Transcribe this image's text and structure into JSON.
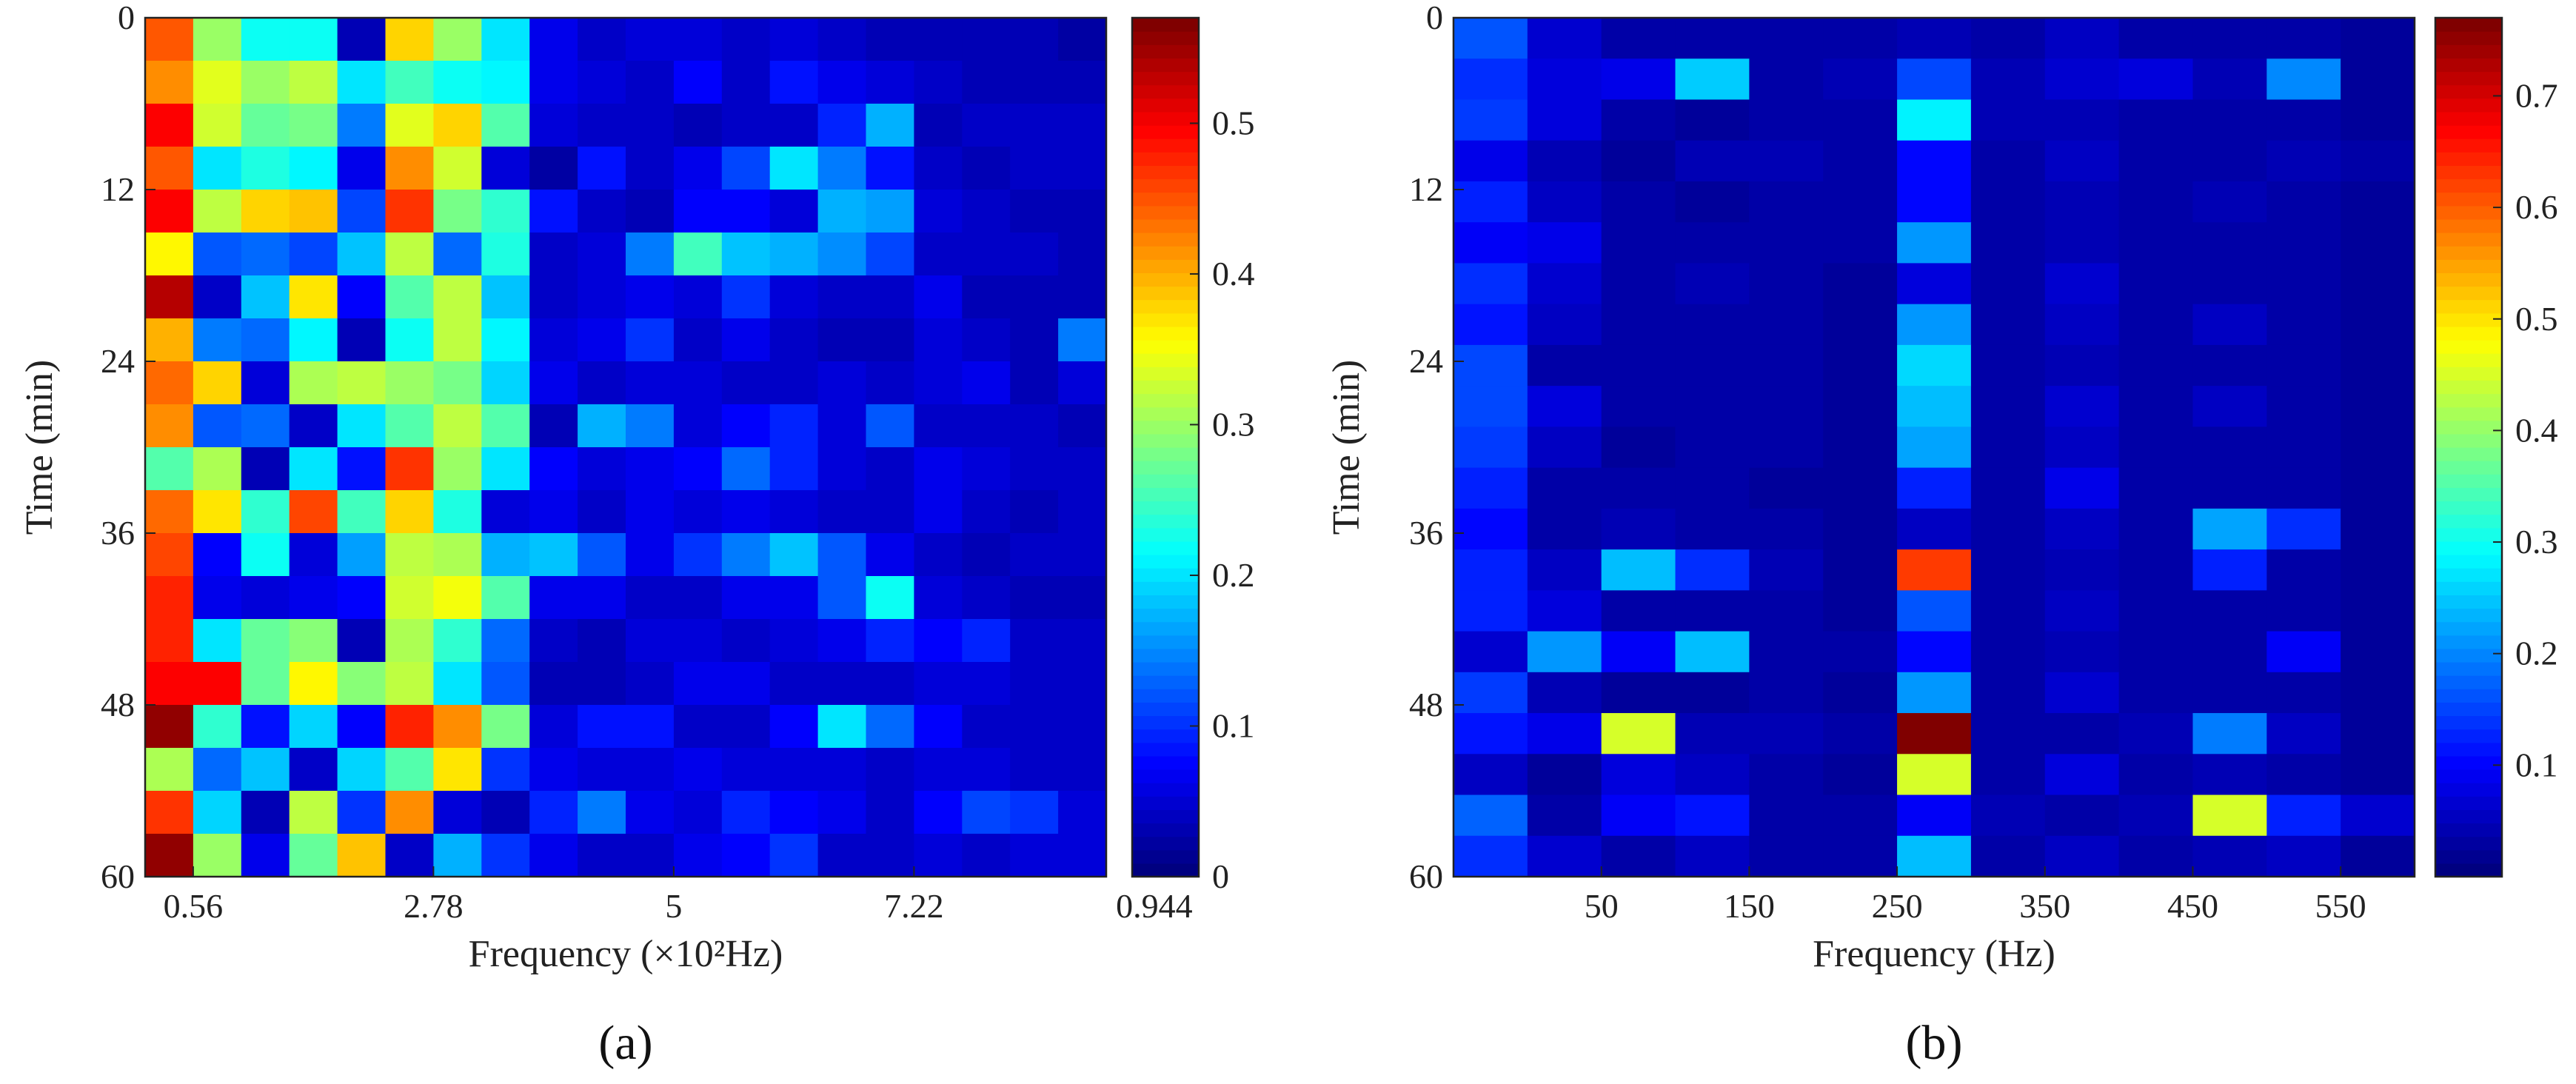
{
  "chart_data": [
    {
      "type": "heatmap",
      "panel_label": "(a)",
      "xlabel": "Frequency (×10²Hz)",
      "ylabel": "Time (min)",
      "xticklabels": [
        "0.56",
        "2.78",
        "5",
        "7.22",
        "0.944"
      ],
      "xtick_columns": [
        1,
        6,
        11,
        16,
        21
      ],
      "yticks": [
        0,
        12,
        24,
        36,
        48,
        60
      ],
      "ylim": [
        0,
        60
      ],
      "colorbar": {
        "min": 0,
        "max": 0.57,
        "ticks": [
          0,
          0.1,
          0.2,
          0.3,
          0.4,
          0.5
        ],
        "ticklabels": [
          "0",
          "0.1",
          "0.2",
          "0.3",
          "0.4",
          "0.5"
        ]
      },
      "values": [
        [
          0.45,
          0.3,
          0.22,
          0.22,
          0.03,
          0.38,
          0.3,
          0.2,
          0.06,
          0.04,
          0.05,
          0.05,
          0.04,
          0.05,
          0.04,
          0.03,
          0.03,
          0.03,
          0.03,
          0.02
        ],
        [
          0.42,
          0.34,
          0.3,
          0.32,
          0.2,
          0.25,
          0.22,
          0.21,
          0.06,
          0.05,
          0.04,
          0.07,
          0.04,
          0.08,
          0.06,
          0.05,
          0.04,
          0.03,
          0.03,
          0.03
        ],
        [
          0.5,
          0.33,
          0.27,
          0.28,
          0.14,
          0.34,
          0.38,
          0.26,
          0.05,
          0.04,
          0.04,
          0.03,
          0.04,
          0.04,
          0.09,
          0.17,
          0.03,
          0.04,
          0.04,
          0.04
        ],
        [
          0.45,
          0.2,
          0.23,
          0.21,
          0.06,
          0.42,
          0.33,
          0.05,
          0.02,
          0.08,
          0.04,
          0.06,
          0.11,
          0.2,
          0.14,
          0.08,
          0.04,
          0.03,
          0.04,
          0.04
        ],
        [
          0.5,
          0.32,
          0.38,
          0.39,
          0.11,
          0.47,
          0.28,
          0.24,
          0.08,
          0.04,
          0.03,
          0.07,
          0.07,
          0.05,
          0.17,
          0.16,
          0.05,
          0.04,
          0.03,
          0.03
        ],
        [
          0.36,
          0.12,
          0.13,
          0.11,
          0.18,
          0.32,
          0.13,
          0.23,
          0.04,
          0.05,
          0.14,
          0.25,
          0.18,
          0.17,
          0.15,
          0.11,
          0.04,
          0.04,
          0.04,
          0.03
        ],
        [
          0.54,
          0.04,
          0.18,
          0.37,
          0.07,
          0.26,
          0.32,
          0.18,
          0.04,
          0.05,
          0.06,
          0.05,
          0.1,
          0.05,
          0.04,
          0.04,
          0.06,
          0.03,
          0.03,
          0.03
        ],
        [
          0.4,
          0.14,
          0.13,
          0.21,
          0.03,
          0.22,
          0.32,
          0.21,
          0.05,
          0.06,
          0.1,
          0.04,
          0.06,
          0.04,
          0.03,
          0.03,
          0.05,
          0.04,
          0.03,
          0.14
        ],
        [
          0.44,
          0.38,
          0.05,
          0.31,
          0.32,
          0.3,
          0.28,
          0.19,
          0.06,
          0.04,
          0.05,
          0.05,
          0.04,
          0.04,
          0.05,
          0.04,
          0.05,
          0.06,
          0.03,
          0.05
        ],
        [
          0.42,
          0.12,
          0.13,
          0.04,
          0.2,
          0.26,
          0.32,
          0.26,
          0.03,
          0.17,
          0.14,
          0.05,
          0.07,
          0.09,
          0.05,
          0.12,
          0.04,
          0.04,
          0.04,
          0.03
        ],
        [
          0.26,
          0.31,
          0.03,
          0.2,
          0.08,
          0.47,
          0.3,
          0.2,
          0.07,
          0.05,
          0.06,
          0.07,
          0.13,
          0.09,
          0.05,
          0.04,
          0.06,
          0.05,
          0.04,
          0.04
        ],
        [
          0.44,
          0.37,
          0.24,
          0.46,
          0.25,
          0.38,
          0.23,
          0.05,
          0.06,
          0.04,
          0.06,
          0.05,
          0.06,
          0.05,
          0.04,
          0.04,
          0.06,
          0.04,
          0.03,
          0.04
        ],
        [
          0.46,
          0.07,
          0.22,
          0.05,
          0.16,
          0.32,
          0.31,
          0.17,
          0.18,
          0.12,
          0.06,
          0.1,
          0.14,
          0.18,
          0.12,
          0.06,
          0.04,
          0.03,
          0.04,
          0.04
        ],
        [
          0.48,
          0.06,
          0.05,
          0.06,
          0.07,
          0.33,
          0.35,
          0.26,
          0.06,
          0.06,
          0.04,
          0.04,
          0.06,
          0.06,
          0.12,
          0.22,
          0.05,
          0.04,
          0.03,
          0.03
        ],
        [
          0.48,
          0.2,
          0.27,
          0.29,
          0.03,
          0.31,
          0.24,
          0.13,
          0.04,
          0.03,
          0.05,
          0.05,
          0.04,
          0.05,
          0.06,
          0.09,
          0.07,
          0.09,
          0.04,
          0.04
        ],
        [
          0.5,
          0.5,
          0.27,
          0.36,
          0.29,
          0.32,
          0.2,
          0.12,
          0.03,
          0.03,
          0.04,
          0.06,
          0.06,
          0.04,
          0.04,
          0.04,
          0.05,
          0.05,
          0.04,
          0.04
        ],
        [
          0.56,
          0.24,
          0.08,
          0.19,
          0.07,
          0.48,
          0.42,
          0.28,
          0.05,
          0.08,
          0.08,
          0.04,
          0.04,
          0.07,
          0.2,
          0.13,
          0.07,
          0.04,
          0.04,
          0.04
        ],
        [
          0.31,
          0.13,
          0.18,
          0.04,
          0.19,
          0.26,
          0.37,
          0.1,
          0.06,
          0.05,
          0.05,
          0.06,
          0.05,
          0.05,
          0.05,
          0.04,
          0.05,
          0.05,
          0.04,
          0.04
        ],
        [
          0.47,
          0.19,
          0.03,
          0.32,
          0.1,
          0.42,
          0.05,
          0.03,
          0.09,
          0.14,
          0.06,
          0.05,
          0.09,
          0.07,
          0.06,
          0.04,
          0.07,
          0.11,
          0.1,
          0.05
        ],
        [
          0.56,
          0.3,
          0.06,
          0.27,
          0.39,
          0.04,
          0.17,
          0.1,
          0.06,
          0.04,
          0.04,
          0.06,
          0.07,
          0.1,
          0.04,
          0.04,
          0.05,
          0.04,
          0.05,
          0.05
        ]
      ]
    },
    {
      "type": "heatmap",
      "panel_label": "(b)",
      "xlabel": "Frequency (Hz)",
      "ylabel": "Time (min)",
      "xticklabels": [
        "50",
        "150",
        "250",
        "350",
        "450",
        "550"
      ],
      "xtick_columns": [
        2,
        4,
        6,
        8,
        10,
        12
      ],
      "yticks": [
        0,
        12,
        24,
        36,
        48,
        60
      ],
      "ylim": [
        0,
        60
      ],
      "colorbar": {
        "min": 0,
        "max": 0.77,
        "ticks": [
          0.1,
          0.2,
          0.3,
          0.4,
          0.5,
          0.6,
          0.7
        ],
        "ticklabels": [
          "0.1",
          "0.2",
          "0.3",
          "0.4",
          "0.5",
          "0.6",
          "0.7"
        ]
      },
      "values": [
        [
          0.16,
          0.06,
          0.03,
          0.03,
          0.03,
          0.03,
          0.04,
          0.03,
          0.05,
          0.03,
          0.03,
          0.03,
          0.02
        ],
        [
          0.13,
          0.07,
          0.08,
          0.25,
          0.03,
          0.04,
          0.15,
          0.04,
          0.06,
          0.07,
          0.04,
          0.2,
          0.02
        ],
        [
          0.14,
          0.07,
          0.03,
          0.02,
          0.03,
          0.03,
          0.28,
          0.04,
          0.04,
          0.03,
          0.03,
          0.03,
          0.02
        ],
        [
          0.08,
          0.04,
          0.02,
          0.04,
          0.04,
          0.03,
          0.1,
          0.03,
          0.05,
          0.03,
          0.03,
          0.04,
          0.03
        ],
        [
          0.12,
          0.05,
          0.03,
          0.02,
          0.03,
          0.03,
          0.1,
          0.03,
          0.04,
          0.03,
          0.04,
          0.03,
          0.02
        ],
        [
          0.09,
          0.08,
          0.03,
          0.03,
          0.03,
          0.03,
          0.21,
          0.03,
          0.04,
          0.03,
          0.03,
          0.03,
          0.02
        ],
        [
          0.13,
          0.06,
          0.03,
          0.04,
          0.03,
          0.02,
          0.07,
          0.03,
          0.06,
          0.03,
          0.03,
          0.03,
          0.02
        ],
        [
          0.11,
          0.05,
          0.03,
          0.03,
          0.03,
          0.02,
          0.21,
          0.03,
          0.05,
          0.03,
          0.05,
          0.03,
          0.02
        ],
        [
          0.15,
          0.03,
          0.03,
          0.03,
          0.03,
          0.02,
          0.26,
          0.03,
          0.04,
          0.03,
          0.03,
          0.03,
          0.02
        ],
        [
          0.15,
          0.07,
          0.03,
          0.03,
          0.03,
          0.02,
          0.24,
          0.03,
          0.06,
          0.03,
          0.05,
          0.03,
          0.02
        ],
        [
          0.14,
          0.05,
          0.02,
          0.03,
          0.03,
          0.02,
          0.22,
          0.03,
          0.05,
          0.03,
          0.03,
          0.03,
          0.02
        ],
        [
          0.12,
          0.03,
          0.03,
          0.03,
          0.02,
          0.02,
          0.12,
          0.03,
          0.08,
          0.03,
          0.03,
          0.03,
          0.02
        ],
        [
          0.1,
          0.03,
          0.04,
          0.03,
          0.03,
          0.02,
          0.05,
          0.03,
          0.05,
          0.03,
          0.22,
          0.13,
          0.02
        ],
        [
          0.12,
          0.05,
          0.24,
          0.13,
          0.04,
          0.02,
          0.63,
          0.03,
          0.04,
          0.03,
          0.12,
          0.03,
          0.02
        ],
        [
          0.12,
          0.07,
          0.03,
          0.03,
          0.03,
          0.02,
          0.16,
          0.03,
          0.05,
          0.03,
          0.03,
          0.03,
          0.02
        ],
        [
          0.06,
          0.21,
          0.09,
          0.24,
          0.03,
          0.03,
          0.1,
          0.03,
          0.04,
          0.03,
          0.03,
          0.09,
          0.02
        ],
        [
          0.14,
          0.04,
          0.02,
          0.02,
          0.03,
          0.02,
          0.21,
          0.03,
          0.06,
          0.03,
          0.03,
          0.03,
          0.02
        ],
        [
          0.11,
          0.08,
          0.45,
          0.04,
          0.04,
          0.03,
          0.77,
          0.03,
          0.03,
          0.04,
          0.19,
          0.05,
          0.02
        ],
        [
          0.05,
          0.02,
          0.07,
          0.05,
          0.03,
          0.02,
          0.45,
          0.03,
          0.07,
          0.03,
          0.04,
          0.03,
          0.02
        ],
        [
          0.17,
          0.03,
          0.09,
          0.11,
          0.03,
          0.03,
          0.09,
          0.04,
          0.03,
          0.04,
          0.45,
          0.12,
          0.06
        ],
        [
          0.13,
          0.06,
          0.03,
          0.05,
          0.03,
          0.03,
          0.24,
          0.03,
          0.05,
          0.03,
          0.04,
          0.05,
          0.02
        ]
      ]
    }
  ]
}
